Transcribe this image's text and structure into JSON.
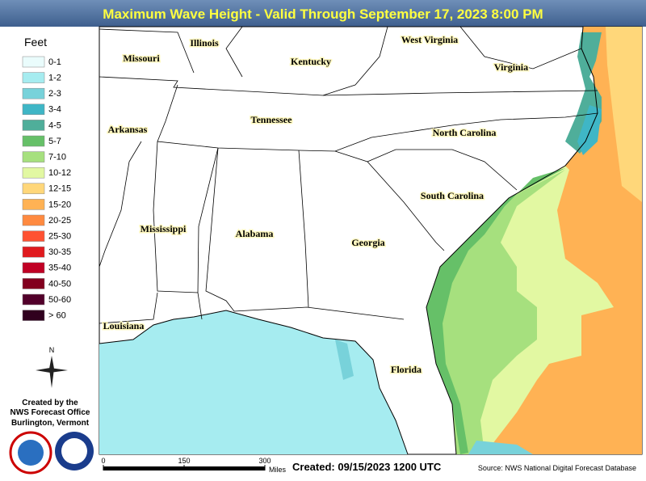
{
  "header": {
    "title": "Maximum Wave Height - Valid Through September 17, 2023 8:00 PM"
  },
  "legend": {
    "title": "Feet",
    "items": [
      {
        "label": "0-1",
        "color": "#eafcfc"
      },
      {
        "label": "1-2",
        "color": "#a6ecf0"
      },
      {
        "label": "2-3",
        "color": "#78d2da"
      },
      {
        "label": "3-4",
        "color": "#3fb6c6"
      },
      {
        "label": "4-5",
        "color": "#4fae9a"
      },
      {
        "label": "5-7",
        "color": "#66c068"
      },
      {
        "label": "7-10",
        "color": "#a6e07e"
      },
      {
        "label": "10-12",
        "color": "#e2f8a2"
      },
      {
        "label": "12-15",
        "color": "#ffd77a"
      },
      {
        "label": "15-20",
        "color": "#ffb254"
      },
      {
        "label": "20-25",
        "color": "#ff8a40"
      },
      {
        "label": "25-30",
        "color": "#ff5232"
      },
      {
        "label": "30-35",
        "color": "#e01a1e"
      },
      {
        "label": "35-40",
        "color": "#c00024"
      },
      {
        "label": "40-50",
        "color": "#82001e"
      },
      {
        "label": "50-60",
        "color": "#52002a"
      },
      {
        "label": "> 60",
        "color": "#30001e"
      }
    ]
  },
  "map": {
    "states": [
      "Illinois",
      "Missouri",
      "Kentucky",
      "West Virginia",
      "Virginia",
      "Arkansas",
      "Tennessee",
      "North Carolina",
      "South Carolina",
      "Mississippi",
      "Alabama",
      "Georgia",
      "Louisiana",
      "Florida"
    ]
  },
  "compass": "N",
  "credits": [
    "Created by the",
    "NWS Forecast Office",
    "Burlington, Vermont"
  ],
  "scale": {
    "ticks": [
      0,
      150,
      300
    ],
    "unit": "Miles"
  },
  "footer": {
    "created": "Created: 09/15/2023 1200 UTC",
    "source": "Source: NWS National Digital Forecast Database"
  }
}
